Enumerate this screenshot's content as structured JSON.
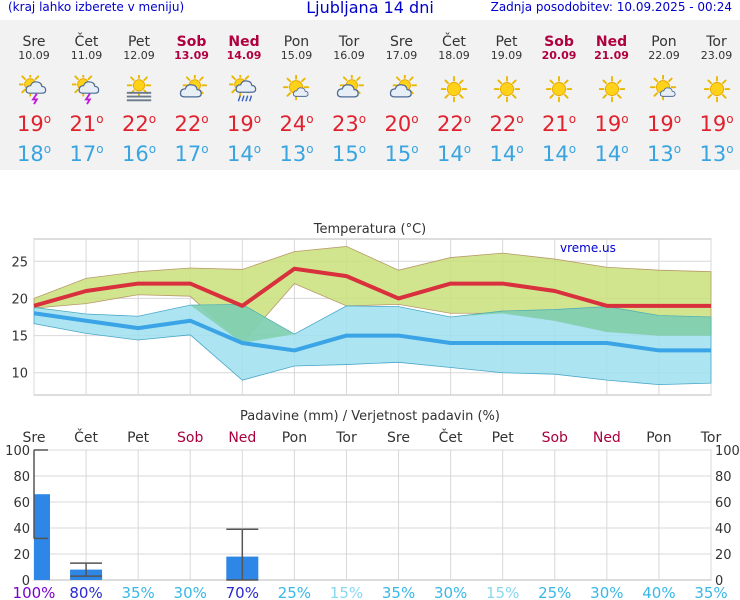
{
  "header": {
    "left": "(kraj lahko izberete v meniju)",
    "title": "Ljubljana 14 dni",
    "right": "Zadnja posodobitev: 10.09.2025 - 00:24"
  },
  "days": [
    {
      "name": "Sre",
      "date": "10.09",
      "weekend": false,
      "icon": "partly-sunny-thunderstorm-icon",
      "max": "19",
      "min": "18"
    },
    {
      "name": "Čet",
      "date": "11.09",
      "weekend": false,
      "icon": "partly-sunny-thunderstorm-icon",
      "max": "21",
      "min": "17"
    },
    {
      "name": "Pet",
      "date": "12.09",
      "weekend": false,
      "icon": "sunny-fog-icon",
      "max": "22",
      "min": "16"
    },
    {
      "name": "Sob",
      "date": "13.09",
      "weekend": true,
      "icon": "partly-cloudy-icon",
      "max": "22",
      "min": "17"
    },
    {
      "name": "Ned",
      "date": "14.09",
      "weekend": true,
      "icon": "partly-sunny-rain-icon",
      "max": "19",
      "min": "14"
    },
    {
      "name": "Pon",
      "date": "15.09",
      "weekend": false,
      "icon": "mostly-sunny-icon",
      "max": "24",
      "min": "13"
    },
    {
      "name": "Tor",
      "date": "16.09",
      "weekend": false,
      "icon": "partly-cloudy-icon",
      "max": "23",
      "min": "15"
    },
    {
      "name": "Sre",
      "date": "17.09",
      "weekend": false,
      "icon": "partly-cloudy-icon",
      "max": "20",
      "min": "15"
    },
    {
      "name": "Čet",
      "date": "18.09",
      "weekend": false,
      "icon": "sunny-icon",
      "max": "22",
      "min": "14"
    },
    {
      "name": "Pet",
      "date": "19.09",
      "weekend": false,
      "icon": "sunny-icon",
      "max": "22",
      "min": "14"
    },
    {
      "name": "Sob",
      "date": "20.09",
      "weekend": true,
      "icon": "sunny-icon",
      "max": "21",
      "min": "14"
    },
    {
      "name": "Ned",
      "date": "21.09",
      "weekend": true,
      "icon": "sunny-icon",
      "max": "19",
      "min": "14"
    },
    {
      "name": "Pon",
      "date": "22.09",
      "weekend": false,
      "icon": "mostly-sunny-icon",
      "max": "19",
      "min": "13"
    },
    {
      "name": "Tor",
      "date": "23.09",
      "weekend": false,
      "icon": "sunny-icon",
      "max": "19",
      "min": "13"
    }
  ],
  "chart_data": [
    {
      "type": "line",
      "title": "Temperatura (°C)",
      "watermark": "vreme.us",
      "x": [
        "10.09",
        "11.09",
        "12.09",
        "13.09",
        "14.09",
        "15.09",
        "16.09",
        "17.09",
        "18.09",
        "19.09",
        "20.09",
        "21.09",
        "22.09",
        "23.09"
      ],
      "ylim": [
        7,
        28
      ],
      "yticks": [
        10,
        15,
        20,
        25
      ],
      "grid": true,
      "series": [
        {
          "role": "max",
          "color": "#d8303c",
          "values": [
            19,
            21,
            22,
            22,
            19,
            24,
            23,
            20,
            22,
            22,
            21,
            19,
            19,
            19
          ]
        },
        {
          "role": "max-range",
          "color": "#c9e07a",
          "upper": [
            20,
            22.7,
            23.6,
            24.1,
            23.9,
            26.3,
            27,
            23.8,
            25.5,
            26.1,
            25.3,
            24.2,
            23.8,
            23.6
          ],
          "lower": [
            18.7,
            19.3,
            20.5,
            20.3,
            14,
            22,
            19,
            19.2,
            18,
            18,
            17,
            15.5,
            15,
            15
          ]
        },
        {
          "role": "min",
          "color": "#3aa4e6",
          "values": [
            18,
            17,
            16,
            17,
            14,
            13,
            15,
            15,
            14,
            14,
            14,
            14,
            13,
            13
          ]
        },
        {
          "role": "min-range",
          "color": "#9ee0ef",
          "upper": [
            18.8,
            17.9,
            17.6,
            19.1,
            19.2,
            15.2,
            19,
            18.9,
            17.5,
            18.3,
            18.5,
            18.9,
            17.7,
            17.5
          ],
          "lower": [
            16.6,
            15.3,
            14.4,
            15.1,
            9,
            10.9,
            11.1,
            11.4,
            10.7,
            10,
            9.8,
            9,
            8.4,
            8.6
          ]
        }
      ]
    },
    {
      "type": "bar",
      "title": "Padavine (mm) / Verjetnost padavin (%)",
      "categories": [
        "Sre",
        "Čet",
        "Pet",
        "Sob",
        "Ned",
        "Pon",
        "Tor",
        "Sre",
        "Čet",
        "Pet",
        "Sob",
        "Ned",
        "Pon",
        "Tor"
      ],
      "weekend": [
        false,
        false,
        false,
        true,
        true,
        false,
        false,
        false,
        false,
        false,
        true,
        true,
        false,
        false
      ],
      "ylim": [
        0,
        100
      ],
      "yticks": [
        0,
        20,
        40,
        60,
        80,
        100
      ],
      "grid": true,
      "values": [
        66,
        8,
        0,
        0,
        18,
        0,
        0,
        0,
        0,
        0,
        0,
        0,
        0,
        0
      ],
      "range_low": [
        32,
        3,
        null,
        null,
        0,
        null,
        null,
        null,
        null,
        null,
        null,
        null,
        null,
        null
      ],
      "range_high": [
        100,
        13,
        null,
        null,
        39,
        null,
        null,
        null,
        null,
        null,
        null,
        null,
        null,
        null
      ],
      "probabilities": [
        "100%",
        "80%",
        "35%",
        "30%",
        "70%",
        "25%",
        "15%",
        "35%",
        "30%",
        "15%",
        "25%",
        "30%",
        "40%",
        "35%"
      ],
      "probability_colors": [
        "#7a00cc",
        "#2a2ad0",
        "#38b8e8",
        "#38b8e8",
        "#2a2ad0",
        "#38b8e8",
        "#88d8f0",
        "#38b8e8",
        "#38b8e8",
        "#88d8f0",
        "#38b8e8",
        "#38b8e8",
        "#38b8e8",
        "#38b8e8"
      ],
      "bar_color": "#2e86e6"
    }
  ]
}
